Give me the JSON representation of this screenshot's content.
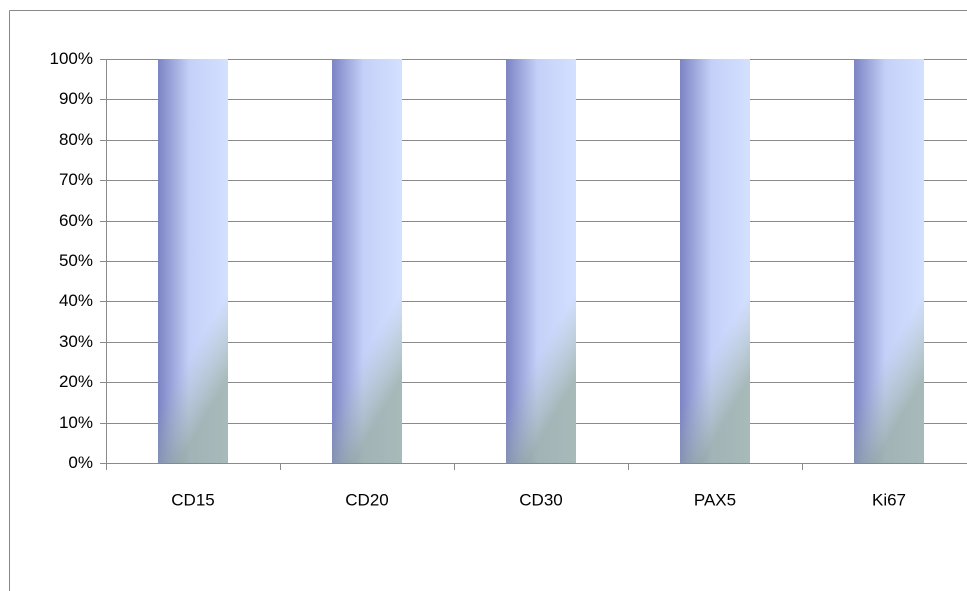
{
  "chart_data": {
    "type": "bar",
    "categories": [
      "CD15",
      "CD20",
      "CD30",
      "PAX5",
      "Ki67"
    ],
    "values": [
      100,
      100,
      100,
      100,
      100
    ],
    "color": "#c8d4fb",
    "ylim": [
      0,
      100
    ],
    "yticks": [
      {
        "value": 0,
        "label": "0%"
      },
      {
        "value": 10,
        "label": "10%"
      },
      {
        "value": 20,
        "label": "20%"
      },
      {
        "value": 30,
        "label": "30%"
      },
      {
        "value": 40,
        "label": "40%"
      },
      {
        "value": 50,
        "label": "50%"
      },
      {
        "value": 60,
        "label": "60%"
      },
      {
        "value": 70,
        "label": "70%"
      },
      {
        "value": 80,
        "label": "80%"
      },
      {
        "value": 90,
        "label": "90%"
      },
      {
        "value": 100,
        "label": "100%"
      }
    ],
    "grid": true
  }
}
